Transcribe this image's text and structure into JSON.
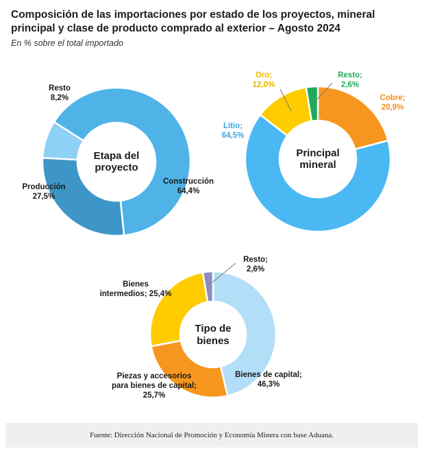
{
  "header": {
    "title": "Composición de las importaciones por estado de los proyectos, mineral principal y clase de producto comprado al exterior – Agosto 2024",
    "subtitle": "En % sobre el total importado"
  },
  "footer": {
    "source": "Fuente: Dirección Nacional de Promoción y Economía Minera con base Aduana."
  },
  "chart_data": [
    {
      "type": "pie",
      "title": "Etapa del proyecto",
      "center_lines": [
        "Etapa del",
        "proyecto"
      ],
      "slices": [
        {
          "name": "Construcción",
          "value": 64.4,
          "label_lines": [
            "Construcción",
            "64,4%"
          ],
          "color": "#4fb3e8",
          "label_color": "#1a1a1a"
        },
        {
          "name": "Producción",
          "value": 27.5,
          "label_lines": [
            "Producción",
            "27,5%"
          ],
          "color": "#3d96c7",
          "label_color": "#1a1a1a"
        },
        {
          "name": "Resto",
          "value": 8.2,
          "label_lines": [
            "Resto",
            "8,2%"
          ],
          "color": "#8fd0f5",
          "label_color": "#1a1a1a"
        }
      ]
    },
    {
      "type": "pie",
      "title": "Principal mineral",
      "center_lines": [
        "Principal",
        "mineral"
      ],
      "slices": [
        {
          "name": "Cobre",
          "value": 20.9,
          "label_lines": [
            "Cobre;",
            "20,9%"
          ],
          "color": "#f7961e",
          "label_color": "#f2901a"
        },
        {
          "name": "Litio",
          "value": 64.5,
          "label_lines": [
            "Litio;",
            "64,5%"
          ],
          "color": "#4ab8f2",
          "label_color": "#39a9e6"
        },
        {
          "name": "Oro",
          "value": 12.0,
          "label_lines": [
            "Oro;",
            "12,0%"
          ],
          "color": "#ffcc00",
          "label_color": "#e6b800"
        },
        {
          "name": "Resto",
          "value": 2.6,
          "label_lines": [
            "Resto;",
            "2,6%"
          ],
          "color": "#1fab5a",
          "label_color": "#1fab5a"
        }
      ]
    },
    {
      "type": "pie",
      "title": "Tipo de bienes",
      "center_lines": [
        "Tipo de",
        "bienes"
      ],
      "slices": [
        {
          "name": "Bienes de capital",
          "value": 46.3,
          "label_lines": [
            "Bienes de capital;",
            "46,3%"
          ],
          "color": "#b3def8",
          "label_color": "#1a1a1a"
        },
        {
          "name": "Piezas y accesorios para bienes de capital",
          "value": 25.7,
          "label_lines": [
            "Piezas y accesorios",
            "para bienes de capital;",
            "25,7%"
          ],
          "color": "#f7961e",
          "label_color": "#1a1a1a"
        },
        {
          "name": "Bienes intermedios",
          "value": 25.4,
          "label_lines": [
            "Bienes",
            "intermedios; 25,4%"
          ],
          "color": "#ffcc00",
          "label_color": "#1a1a1a"
        },
        {
          "name": "Resto",
          "value": 2.6,
          "label_lines": [
            "Resto;",
            "2,6%"
          ],
          "color": "#8e8bbf",
          "label_color": "#1a1a1a"
        }
      ]
    }
  ]
}
